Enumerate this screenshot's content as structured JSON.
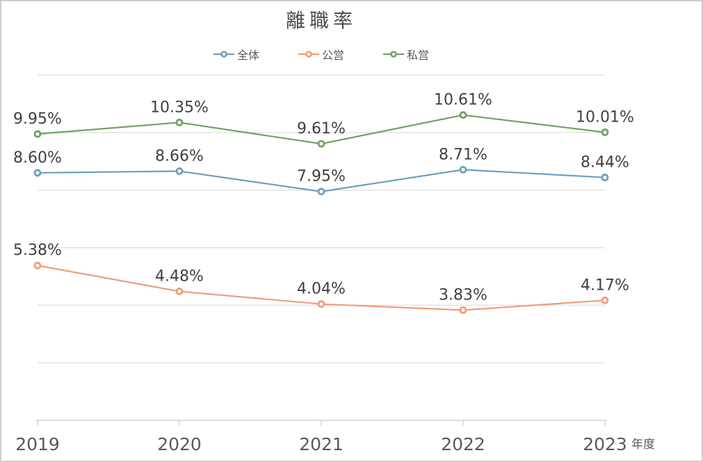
{
  "chart_data": {
    "type": "line",
    "title": "離職率",
    "categories": [
      "2019",
      "2020",
      "2021",
      "2022",
      "2023"
    ],
    "x_axis_unit": "年度",
    "ylim": [
      0,
      12
    ],
    "grid_step_pct": 2,
    "grid": true,
    "legend_position": "top-center",
    "data_labels": true,
    "label_format": "two-decimal percent above each point",
    "series": [
      {
        "name": "全体",
        "color": "#6E9EC0",
        "values": [
          8.6,
          8.66,
          7.95,
          8.71,
          8.44
        ]
      },
      {
        "name": "公営",
        "color": "#EE9D7B",
        "values": [
          5.38,
          4.48,
          4.04,
          3.83,
          4.17
        ]
      },
      {
        "name": "私営",
        "color": "#6FA361",
        "values": [
          9.95,
          10.35,
          9.61,
          10.61,
          10.01
        ]
      }
    ]
  },
  "colors": {
    "background": "#FFFFFF",
    "border": "#CDCDCD",
    "gridline": "#E2E2E2",
    "axis": "#D0D0D0",
    "title_text": "#4D4D4D",
    "data_label_text": "#404040",
    "axis_label_text": "#595959",
    "legend_text": "#595959",
    "marker_fill": "#FFFFFF"
  }
}
